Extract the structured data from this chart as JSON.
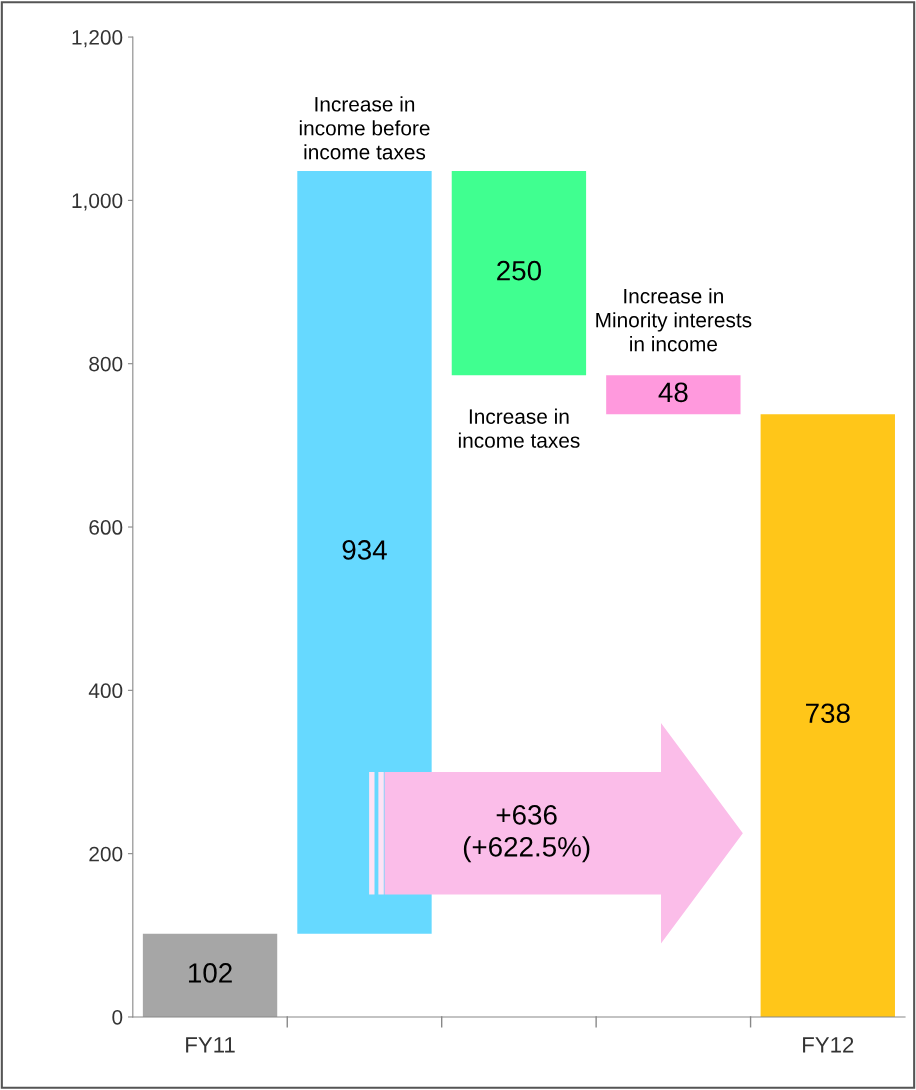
{
  "chart_data": {
    "type": "bar",
    "categories": [
      "FY11",
      null,
      null,
      null,
      "FY12"
    ],
    "values": [
      102,
      934,
      250,
      48,
      738
    ],
    "base": [
      0,
      102,
      786,
      738,
      0
    ],
    "colors": [
      "#a6a6a6",
      "#66d9ff",
      "#40ff90",
      "#ff99dd",
      "#ffc619"
    ],
    "data_labels": true,
    "ylim": [
      0,
      1200
    ],
    "yticks": [
      0,
      200,
      400,
      600,
      800,
      {
        "value": 1000,
        "label": "1,000"
      },
      {
        "value": 1200,
        "label": "1,200"
      }
    ],
    "grid": false,
    "annotations": [
      "Increase in\nincome before\nincome taxes",
      "Increase in\nincome taxes",
      "Increase in\nMinority interests\nin income",
      "+636\n(+622.5%)"
    ]
  }
}
